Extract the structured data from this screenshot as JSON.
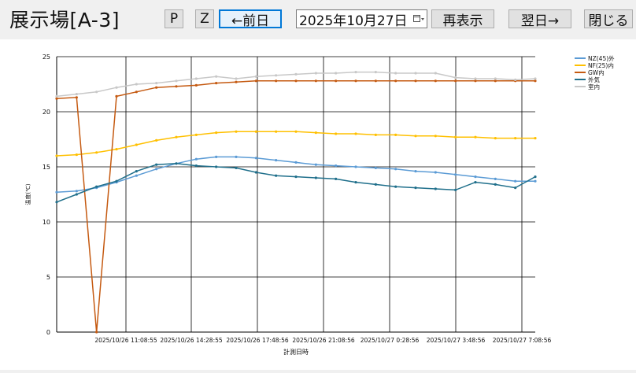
{
  "window": {
    "title": "展示場[A-3]"
  },
  "toolbar": {
    "p_label": "P",
    "z_label": "Z",
    "prev_label": "←前日",
    "date_value": "2025年10月27日",
    "refresh_label": "再表示",
    "next_label": "翌日→",
    "close_label": "閉じる"
  },
  "chart_data": {
    "type": "line",
    "xlabel": "計測日時",
    "ylabel": "温度(℃)",
    "ylim": [
      0,
      25
    ],
    "yticks": [
      0,
      5,
      10,
      15,
      20,
      25
    ],
    "xticks": [
      "2025/10/26 11:08:55",
      "2025/10/26 14:28:55",
      "2025/10/26 17:48:56",
      "2025/10/26 21:08:56",
      "2025/10/27 0:28:56",
      "2025/10/27 3:48:56",
      "2025/10/27 7:08:56"
    ],
    "x_hours": [
      0,
      1,
      2,
      3,
      4,
      5,
      6,
      7,
      8,
      9,
      10,
      11,
      12,
      13,
      14,
      15,
      16,
      17,
      18,
      19,
      20,
      21,
      22,
      23,
      24
    ],
    "legend_position": "top-right",
    "grid": true,
    "series": [
      {
        "name": "NZ(45)外",
        "color": "#5b9bd5",
        "values": [
          12.7,
          12.8,
          13.1,
          13.6,
          14.2,
          14.8,
          15.3,
          15.7,
          15.9,
          15.9,
          15.8,
          15.6,
          15.4,
          15.2,
          15.1,
          15.0,
          14.9,
          14.8,
          14.6,
          14.5,
          14.3,
          14.1,
          13.9,
          13.7,
          13.7
        ]
      },
      {
        "name": "NF(25)内",
        "color": "#ffc000",
        "values": [
          16.0,
          16.1,
          16.3,
          16.6,
          17.0,
          17.4,
          17.7,
          17.9,
          18.1,
          18.2,
          18.2,
          18.2,
          18.2,
          18.1,
          18.0,
          18.0,
          17.9,
          17.9,
          17.8,
          17.8,
          17.7,
          17.7,
          17.6,
          17.6,
          17.6
        ]
      },
      {
        "name": "GW内",
        "color": "#c55a11",
        "values": [
          21.2,
          21.3,
          0.0,
          21.4,
          21.8,
          22.2,
          22.3,
          22.4,
          22.6,
          22.7,
          22.8,
          22.8,
          22.8,
          22.8,
          22.8,
          22.8,
          22.8,
          22.8,
          22.8,
          22.8,
          22.8,
          22.8,
          22.8,
          22.8,
          22.8
        ]
      },
      {
        "name": "外気",
        "color": "#1f6f8b",
        "values": [
          11.8,
          12.5,
          13.2,
          13.7,
          14.6,
          15.2,
          15.3,
          15.1,
          15.0,
          14.9,
          14.5,
          14.2,
          14.1,
          14.0,
          13.9,
          13.6,
          13.4,
          13.2,
          13.1,
          13.0,
          12.9,
          13.6,
          13.4,
          13.1,
          14.1
        ]
      },
      {
        "name": "室内",
        "color": "#c8c8c8",
        "values": [
          21.4,
          21.6,
          21.8,
          22.2,
          22.5,
          22.6,
          22.8,
          23.0,
          23.2,
          23.0,
          23.2,
          23.3,
          23.4,
          23.5,
          23.5,
          23.6,
          23.6,
          23.5,
          23.5,
          23.5,
          23.1,
          23.0,
          23.0,
          22.9,
          23.0
        ]
      }
    ]
  }
}
